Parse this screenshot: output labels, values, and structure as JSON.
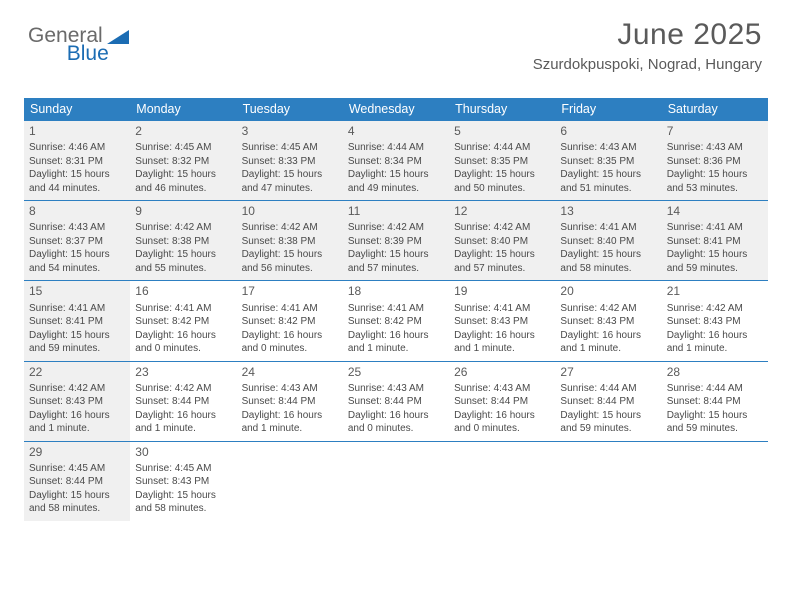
{
  "logo": {
    "part1": "General",
    "part2": "Blue"
  },
  "title": "June 2025",
  "location": "Szurdokpuspoki, Nograd, Hungary",
  "colors": {
    "header_bg": "#2d7fc1",
    "header_fg": "#ffffff",
    "shade_bg": "#f0f0f0",
    "border": "#2d7fc1",
    "text": "#4a4a4a",
    "logo_blue": "#1b6cb3"
  },
  "dayNames": [
    "Sunday",
    "Monday",
    "Tuesday",
    "Wednesday",
    "Thursday",
    "Friday",
    "Saturday"
  ],
  "weeks": [
    [
      {
        "n": "1",
        "sr": "4:46 AM",
        "ss": "8:31 PM",
        "dl": "15 hours and 44 minutes.",
        "shade": true
      },
      {
        "n": "2",
        "sr": "4:45 AM",
        "ss": "8:32 PM",
        "dl": "15 hours and 46 minutes.",
        "shade": true
      },
      {
        "n": "3",
        "sr": "4:45 AM",
        "ss": "8:33 PM",
        "dl": "15 hours and 47 minutes.",
        "shade": true
      },
      {
        "n": "4",
        "sr": "4:44 AM",
        "ss": "8:34 PM",
        "dl": "15 hours and 49 minutes.",
        "shade": true
      },
      {
        "n": "5",
        "sr": "4:44 AM",
        "ss": "8:35 PM",
        "dl": "15 hours and 50 minutes.",
        "shade": true
      },
      {
        "n": "6",
        "sr": "4:43 AM",
        "ss": "8:35 PM",
        "dl": "15 hours and 51 minutes.",
        "shade": true
      },
      {
        "n": "7",
        "sr": "4:43 AM",
        "ss": "8:36 PM",
        "dl": "15 hours and 53 minutes.",
        "shade": true
      }
    ],
    [
      {
        "n": "8",
        "sr": "4:43 AM",
        "ss": "8:37 PM",
        "dl": "15 hours and 54 minutes.",
        "shade": true
      },
      {
        "n": "9",
        "sr": "4:42 AM",
        "ss": "8:38 PM",
        "dl": "15 hours and 55 minutes.",
        "shade": true
      },
      {
        "n": "10",
        "sr": "4:42 AM",
        "ss": "8:38 PM",
        "dl": "15 hours and 56 minutes.",
        "shade": true
      },
      {
        "n": "11",
        "sr": "4:42 AM",
        "ss": "8:39 PM",
        "dl": "15 hours and 57 minutes.",
        "shade": true
      },
      {
        "n": "12",
        "sr": "4:42 AM",
        "ss": "8:40 PM",
        "dl": "15 hours and 57 minutes.",
        "shade": true
      },
      {
        "n": "13",
        "sr": "4:41 AM",
        "ss": "8:40 PM",
        "dl": "15 hours and 58 minutes.",
        "shade": true
      },
      {
        "n": "14",
        "sr": "4:41 AM",
        "ss": "8:41 PM",
        "dl": "15 hours and 59 minutes.",
        "shade": true
      }
    ],
    [
      {
        "n": "15",
        "sr": "4:41 AM",
        "ss": "8:41 PM",
        "dl": "15 hours and 59 minutes.",
        "shade": true
      },
      {
        "n": "16",
        "sr": "4:41 AM",
        "ss": "8:42 PM",
        "dl": "16 hours and 0 minutes."
      },
      {
        "n": "17",
        "sr": "4:41 AM",
        "ss": "8:42 PM",
        "dl": "16 hours and 0 minutes."
      },
      {
        "n": "18",
        "sr": "4:41 AM",
        "ss": "8:42 PM",
        "dl": "16 hours and 1 minute."
      },
      {
        "n": "19",
        "sr": "4:41 AM",
        "ss": "8:43 PM",
        "dl": "16 hours and 1 minute."
      },
      {
        "n": "20",
        "sr": "4:42 AM",
        "ss": "8:43 PM",
        "dl": "16 hours and 1 minute."
      },
      {
        "n": "21",
        "sr": "4:42 AM",
        "ss": "8:43 PM",
        "dl": "16 hours and 1 minute."
      }
    ],
    [
      {
        "n": "22",
        "sr": "4:42 AM",
        "ss": "8:43 PM",
        "dl": "16 hours and 1 minute.",
        "shade": true
      },
      {
        "n": "23",
        "sr": "4:42 AM",
        "ss": "8:44 PM",
        "dl": "16 hours and 1 minute."
      },
      {
        "n": "24",
        "sr": "4:43 AM",
        "ss": "8:44 PM",
        "dl": "16 hours and 1 minute."
      },
      {
        "n": "25",
        "sr": "4:43 AM",
        "ss": "8:44 PM",
        "dl": "16 hours and 0 minutes."
      },
      {
        "n": "26",
        "sr": "4:43 AM",
        "ss": "8:44 PM",
        "dl": "16 hours and 0 minutes."
      },
      {
        "n": "27",
        "sr": "4:44 AM",
        "ss": "8:44 PM",
        "dl": "15 hours and 59 minutes."
      },
      {
        "n": "28",
        "sr": "4:44 AM",
        "ss": "8:44 PM",
        "dl": "15 hours and 59 minutes."
      }
    ],
    [
      {
        "n": "29",
        "sr": "4:45 AM",
        "ss": "8:44 PM",
        "dl": "15 hours and 58 minutes.",
        "shade": true
      },
      {
        "n": "30",
        "sr": "4:45 AM",
        "ss": "8:43 PM",
        "dl": "15 hours and 58 minutes."
      },
      {
        "empty": true
      },
      {
        "empty": true
      },
      {
        "empty": true
      },
      {
        "empty": true
      },
      {
        "empty": true
      }
    ]
  ],
  "labels": {
    "sunrise": "Sunrise:",
    "sunset": "Sunset:",
    "daylight": "Daylight:"
  }
}
